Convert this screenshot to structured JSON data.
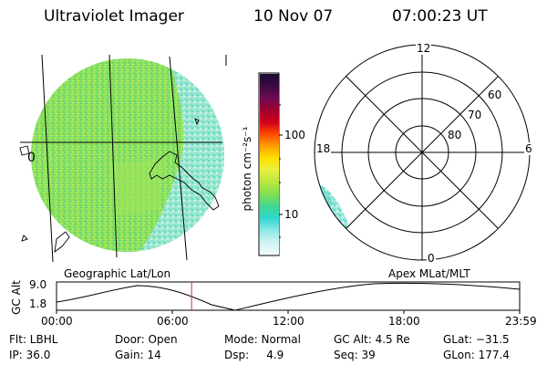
{
  "header": {
    "title": "Ultraviolet Imager",
    "date": "10 Nov 07",
    "time": "07:00:23 UT"
  },
  "colorbar": {
    "unit_label": "photon cm⁻²s⁻¹",
    "ticks": [
      "100",
      "10"
    ],
    "colors": [
      "#1a0a2e",
      "#3b0a45",
      "#6e0a50",
      "#a00030",
      "#d0001a",
      "#ff4a00",
      "#ffa000",
      "#ffe000",
      "#e8f040",
      "#b8e840",
      "#80e050",
      "#40d890",
      "#30d8d0",
      "#90e8e8",
      "#d0f4f4",
      "#f0fafa"
    ]
  },
  "left_panel": {
    "caption": "Geographic Lat/Lon",
    "label_0": "0"
  },
  "right_panel": {
    "caption": "Apex MLat/MLT",
    "mlt_labels": {
      "top": "12",
      "left": "18",
      "right": "6",
      "bottom": "0"
    },
    "lat_labels": [
      "60",
      "70",
      "80"
    ]
  },
  "altitude_plot": {
    "ylabel": "GC Alt",
    "yticks": [
      "9.0",
      "1.8"
    ],
    "xticks": [
      "00:00",
      "06:00",
      "12:00",
      "18:00",
      "23:59"
    ],
    "current_marker_hours": 7.0,
    "marker_color": "#d03030"
  },
  "info": {
    "flt": "Flt: LBHL",
    "ip": "IP: 36.0",
    "door": "Door: Open",
    "gain": "Gain: 14",
    "mode": "Mode: Normal",
    "dsp": "Dsp:     4.9",
    "gcalt": "GC Alt: 4.5 Re",
    "seq": "Seq: 39",
    "glat": "GLat: −31.5",
    "glon": "GLon: 177.4"
  }
}
